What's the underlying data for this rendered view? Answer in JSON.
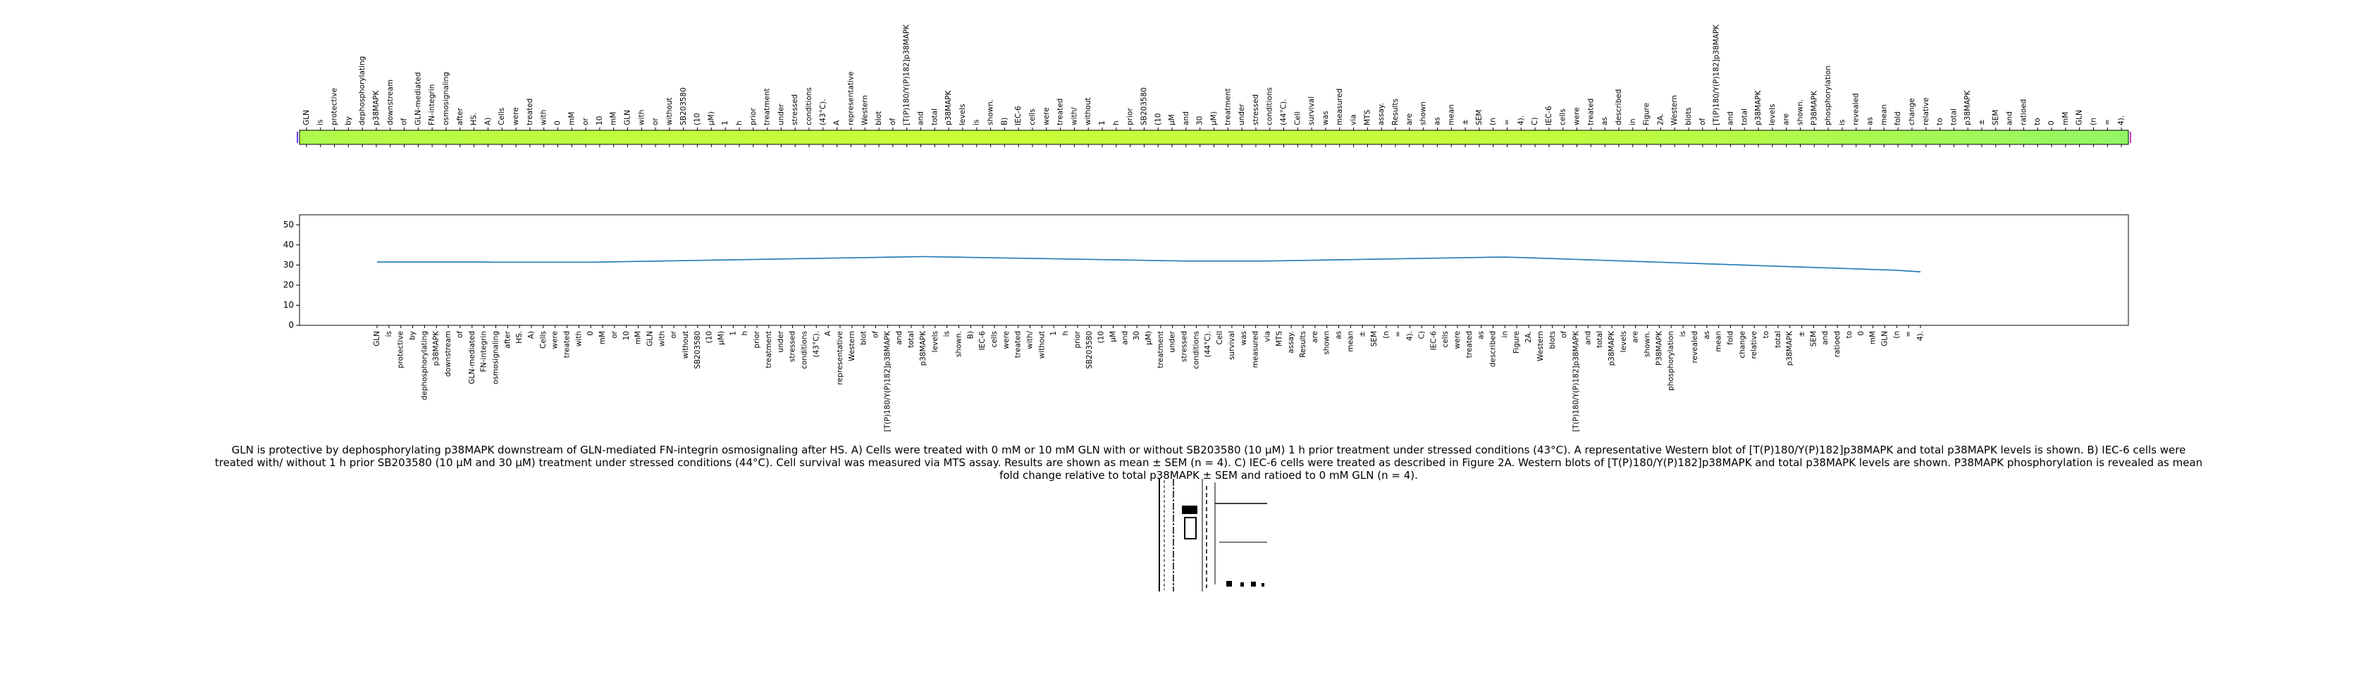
{
  "caption": "GLN is protective by dephosphorylating p38MAPK downstream of GLN-mediated FN-integrin osmosignaling after HS. A) Cells were treated with 0 mM or 10 mM GLN with or without SB203580 (10 μM) 1 h prior treatment under stressed conditions (43°C). A representative Western blot of [T(P)180/Y(P)182]p38MAPK and total p38MAPK levels is shown. B) IEC-6 cells were treated with/ without 1 h prior SB203580 (10 μM and 30 μM) treatment under stressed conditions (44°C). Cell survival was measured via MTS assay. Results are shown as mean ± SEM (n = 4). C) IEC-6 cells were treated as described in Figure 2A. Western blots of [T(P)180/Y(P)182]p38MAPK and total p38MAPK levels are shown. P38MAPK phosphorylation is revealed as mean fold change relative to total p38MAPK ± SEM and ratioed to 0 mM GLN (n = 4).",
  "chart_data": [
    {
      "type": "heatmap",
      "x_tokens_top": [
        "GLN",
        "is",
        "protective",
        "by",
        "dephosphorylating",
        "p38MAPK",
        "downstream",
        "of",
        "GLN-mediated",
        "FN-integrin",
        "osmosignaling",
        "after",
        "HS.",
        "A)",
        "Cells",
        "were",
        "treated",
        "with",
        "0",
        "mM",
        "or",
        "10",
        "mM",
        "GLN",
        "with",
        "or",
        "without",
        "SB203580",
        "(10",
        "μM)",
        "1",
        "h",
        "prior",
        "treatment",
        "under",
        "stressed",
        "conditions",
        "(43°C).",
        "A",
        "representative",
        "Western",
        "blot",
        "of",
        "[T(P)180/Y(P)182]p38MAPK",
        "and",
        "total",
        "p38MAPK",
        "levels",
        "is",
        "shown.",
        "B)",
        "IEC-6",
        "cells",
        "were",
        "treated",
        "with/",
        "without",
        "1",
        "h",
        "prior",
        "SB203580",
        "(10",
        "μM",
        "and",
        "30",
        "μM)",
        "treatment",
        "under",
        "stressed",
        "conditions",
        "(44°C).",
        "Cell",
        "survival",
        "was",
        "measured",
        "via",
        "MTS",
        "assay.",
        "Results",
        "are",
        "shown",
        "as",
        "mean",
        "±",
        "SEM",
        "(n",
        "=",
        "4).",
        "C)",
        "IEC-6",
        "cells",
        "were",
        "treated",
        "as",
        "described",
        "in",
        "Figure",
        "2A.",
        "Western",
        "blots",
        "of",
        "[T(P)180/Y(P)182]p38MAPK",
        "and",
        "total",
        "p38MAPK",
        "levels",
        "are",
        "shown.",
        "P38MAPK",
        "phosphorylation",
        "is",
        "revealed",
        "as",
        "mean",
        "fold",
        "change",
        "relative",
        "to",
        "total",
        "p38MAPK",
        "±",
        "SEM",
        "and",
        "ratioed",
        "to",
        "0",
        "mM",
        "GLN",
        "(n",
        "=",
        "4)."
      ],
      "values": [
        0.62,
        0.64,
        0.66,
        0.67,
        0.68,
        0.69,
        0.7,
        0.71,
        0.72,
        0.72,
        0.73,
        0.73,
        0.74,
        0.74,
        0.75,
        0.75,
        0.75,
        0.76,
        0.76,
        0.76,
        0.77,
        0.77,
        0.77,
        0.78,
        0.78,
        0.78,
        0.79,
        0.79,
        0.79,
        0.8,
        0.8,
        0.8,
        0.81,
        0.81,
        0.81,
        0.82,
        0.82,
        0.82,
        0.83,
        0.83,
        0.83,
        0.83,
        0.84,
        0.84,
        0.84,
        0.84,
        0.84,
        0.84,
        0.84,
        0.84,
        0.84,
        0.84,
        0.84,
        0.84,
        0.83,
        0.83,
        0.83,
        0.83,
        0.83,
        0.82,
        0.82,
        0.82,
        0.82,
        0.82,
        0.82,
        0.82,
        0.82,
        0.82,
        0.82,
        0.82,
        0.82,
        0.82,
        0.82,
        0.82,
        0.82,
        0.82,
        0.82,
        0.82,
        0.82,
        0.82,
        0.82,
        0.81,
        0.81,
        0.81,
        0.8,
        0.8,
        0.79,
        0.79,
        0.78,
        0.78,
        0.77,
        0.77,
        0.76,
        0.76,
        0.75,
        0.74,
        0.74,
        0.73,
        0.72,
        0.72,
        0.71,
        0.7,
        0.69,
        0.68,
        0.67,
        0.66,
        0.65,
        0.64,
        0.63,
        0.62,
        0.61,
        0.6,
        0.59,
        0.58,
        0.57,
        0.56,
        0.55,
        0.54,
        0.53,
        0.52,
        0.51,
        0.5,
        0.49,
        0.48,
        0.47,
        0.46,
        0.45,
        0.44,
        0.43,
        0.42,
        0.41
      ],
      "colormap": "yellow-green"
    },
    {
      "type": "line",
      "ylim": [
        0,
        55
      ],
      "yticks": [
        0,
        10,
        20,
        30,
        40,
        50
      ],
      "x_tokens_bottom": [
        "GLN",
        "is",
        "protective",
        "by",
        "dephosphorylating",
        "p38MAPK",
        "downstream",
        "of",
        "GLN-mediated",
        "FN-integrin",
        "osmosignaling",
        "after",
        "HS.",
        "A)",
        "Cells",
        "were",
        "treated",
        "with",
        "0",
        "mM",
        "or",
        "10",
        "mM",
        "GLN",
        "with",
        "or",
        "without",
        "SB203580",
        "(10",
        "μM)",
        "1",
        "h",
        "prior",
        "treatment",
        "under",
        "stressed",
        "conditions",
        "(43°C).",
        "A",
        "representative",
        "Western",
        "blot",
        "of",
        "[T(P)180/Y(P)182]p38MAPK",
        "and",
        "total",
        "p38MAPK",
        "levels",
        "is",
        "shown.",
        "B)",
        "IEC-6",
        "cells",
        "were",
        "treated",
        "with/",
        "without",
        "1",
        "h",
        "prior",
        "SB203580",
        "(10",
        "μM",
        "and",
        "30",
        "μM)",
        "treatment",
        "under",
        "stressed",
        "conditions",
        "(44°C).",
        "Cell",
        "survival",
        "was",
        "measured",
        "via",
        "MTS",
        "assay.",
        "Results",
        "are",
        "shown",
        "as",
        "mean",
        "±",
        "SEM",
        "(n",
        "=",
        "4).",
        "C)",
        "IEC-6",
        "cells",
        "were",
        "treated",
        "as",
        "described",
        "in",
        "Figure",
        "2A.",
        "Western",
        "blots",
        "of",
        "[T(P)180/Y(P)182]p38MAPK",
        "and",
        "total",
        "p38MAPK",
        "levels",
        "are",
        "shown.",
        "P38MAPK",
        "phosphorylation",
        "is",
        "revealed",
        "as",
        "mean",
        "fold",
        "change",
        "relative",
        "to",
        "total",
        "p38MAPK",
        "±",
        "SEM",
        "and",
        "ratioed",
        "to",
        "0",
        "mM",
        "GLN",
        "(n",
        "=",
        "4)."
      ],
      "series": [
        {
          "color": "#1f77b4",
          "values": [
            31.5,
            31.5,
            31.5,
            31.5,
            31.5,
            31.5,
            31.5,
            31.5,
            31.5,
            31.5,
            31.4,
            31.4,
            31.4,
            31.4,
            31.4,
            31.4,
            31.4,
            31.4,
            31.4,
            31.5,
            31.6,
            31.7,
            31.8,
            31.9,
            32.0,
            32.1,
            32.2,
            32.3,
            32.4,
            32.5,
            32.6,
            32.7,
            32.8,
            32.9,
            33.0,
            33.1,
            33.2,
            33.3,
            33.4,
            33.5,
            33.6,
            33.7,
            33.8,
            33.9,
            34.0,
            34.1,
            34.2,
            34.1,
            34.0,
            33.9,
            33.8,
            33.7,
            33.6,
            33.5,
            33.4,
            33.3,
            33.2,
            33.1,
            33.0,
            32.9,
            32.8,
            32.7,
            32.6,
            32.5,
            32.4,
            32.3,
            32.2,
            32.1,
            32.0,
            32.0,
            32.0,
            32.0,
            32.0,
            32.0,
            32.0,
            32.0,
            32.1,
            32.2,
            32.3,
            32.4,
            32.5,
            32.6,
            32.7,
            32.8,
            32.9,
            33.0,
            33.1,
            33.2,
            33.3,
            33.4,
            33.5,
            33.6,
            33.7,
            33.8,
            33.9,
            33.9,
            33.8,
            33.6,
            33.4,
            33.2,
            33.0,
            32.8,
            32.6,
            32.4,
            32.2,
            32.0,
            31.8,
            31.6,
            31.4,
            31.2,
            31.0,
            30.8,
            30.6,
            30.4,
            30.2,
            30.0,
            29.8,
            29.6,
            29.4,
            29.2,
            29.0,
            28.8,
            28.6,
            28.4,
            28.2,
            28.0,
            27.8,
            27.6,
            27.4,
            27.0,
            26.6
          ]
        }
      ]
    }
  ]
}
